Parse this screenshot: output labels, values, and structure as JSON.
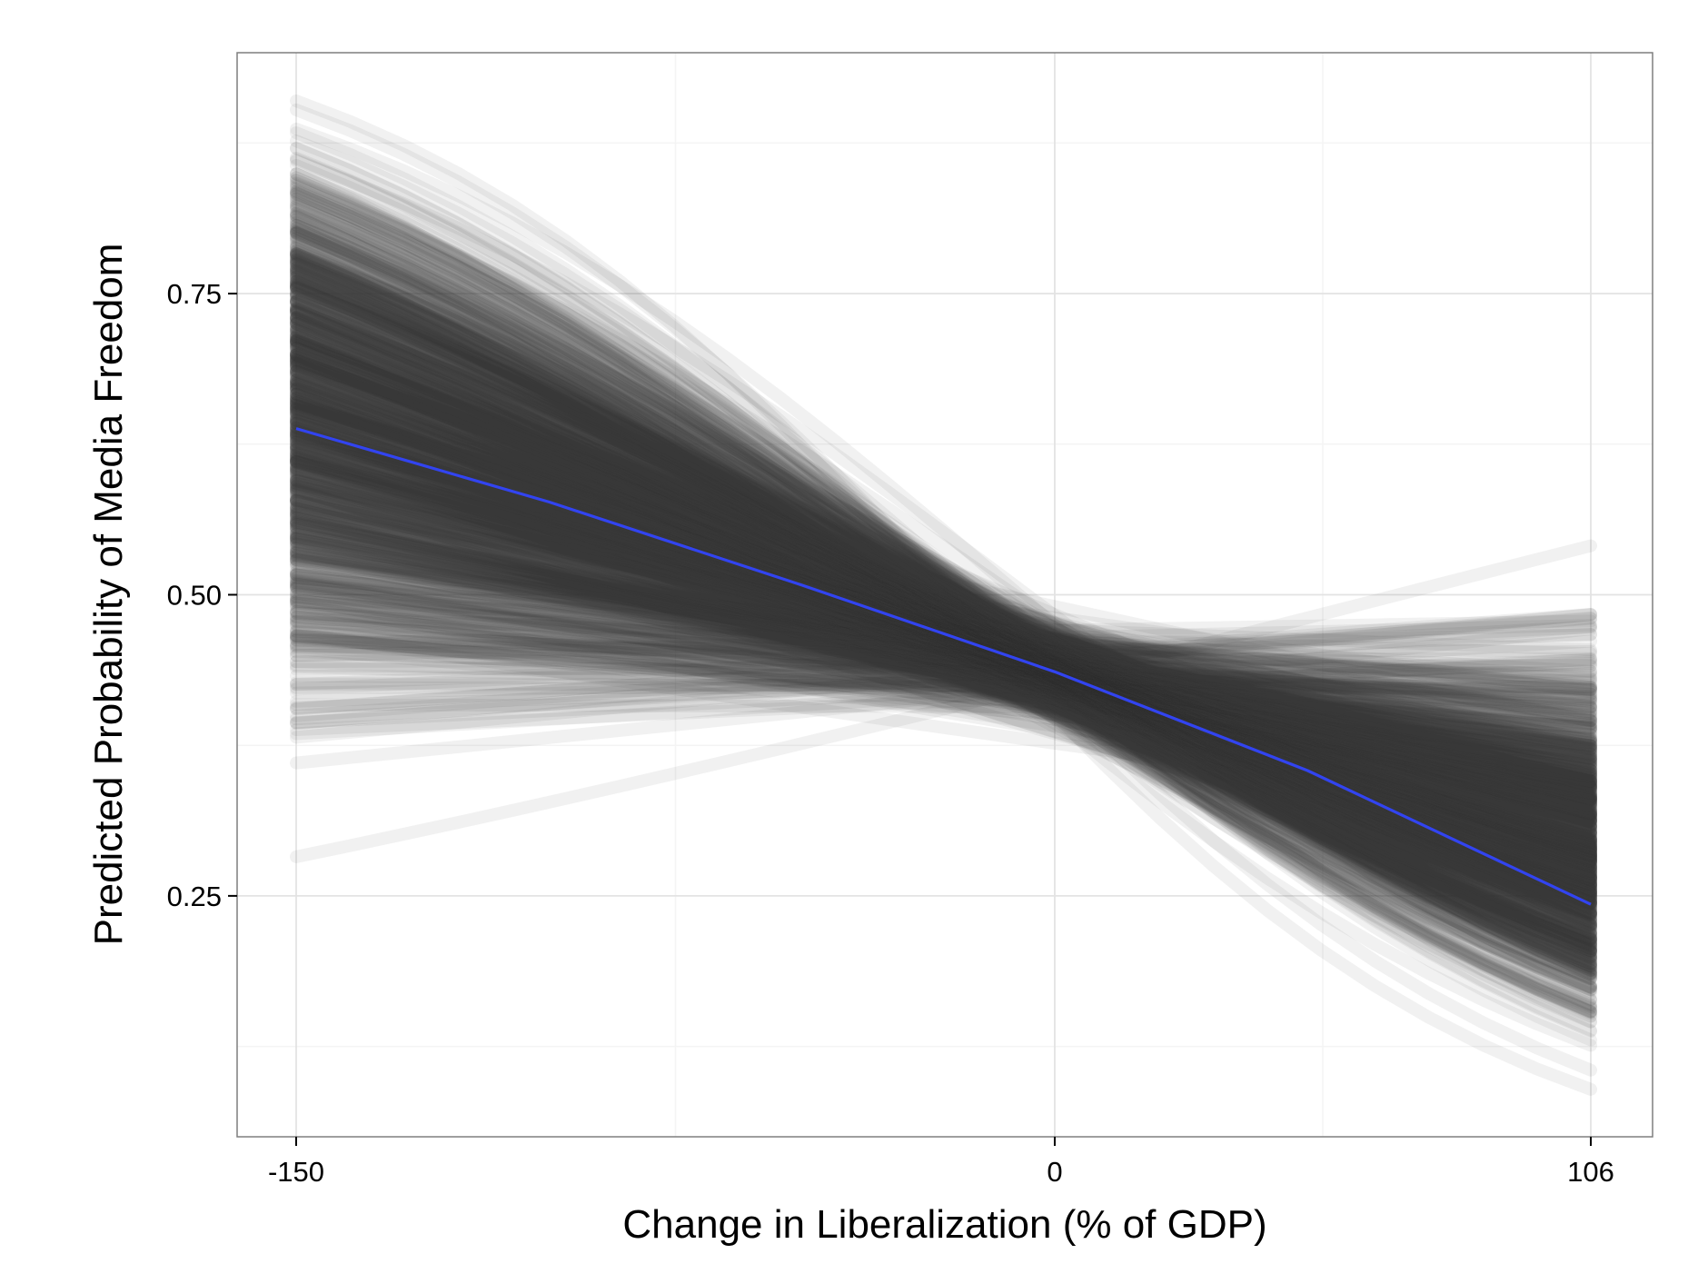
{
  "chart_data": {
    "type": "line",
    "title": "",
    "xlabel": "Change in Liberalization (% of GDP)",
    "ylabel": "Predicted Probability of Media Freedom",
    "xlim": [
      -150,
      106
    ],
    "ylim": [
      0.05,
      0.95
    ],
    "x_ticks": [
      {
        "value": -150,
        "label": "-150"
      },
      {
        "value": 0,
        "label": "0"
      },
      {
        "value": 106,
        "label": "106"
      }
    ],
    "y_ticks": [
      {
        "value": 0.25,
        "label": "0.25"
      },
      {
        "value": 0.5,
        "label": "0.50"
      },
      {
        "value": 0.75,
        "label": "0.75"
      }
    ],
    "grid": true,
    "series": [
      {
        "role": "mean-prediction",
        "color": "#3244f0",
        "x": [
          -150,
          -100,
          -50,
          0,
          50,
          106
        ],
        "y": [
          0.638,
          0.577,
          0.508,
          0.436,
          0.354,
          0.243
        ]
      },
      {
        "role": "simulation-draws",
        "color": "#3b3b3b",
        "draw_count": 1000,
        "x_range": [
          -150,
          106
        ],
        "start_range": [
          0.21,
          0.91
        ],
        "end_range": [
          0.07,
          0.58
        ]
      }
    ]
  }
}
